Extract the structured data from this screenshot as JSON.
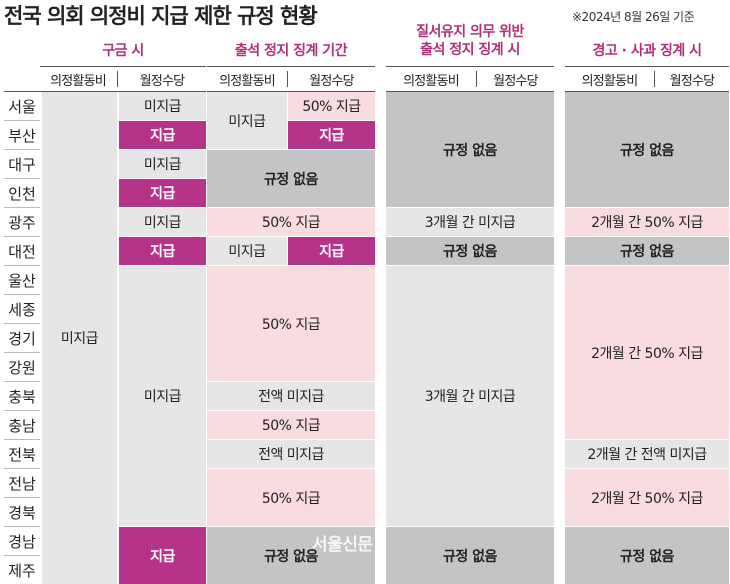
{
  "title": "전국 의회 의정비 지급 제한 규정 현황",
  "date_note": "※2024년 8월 26일 기준",
  "groups": {
    "g1": "구금 시",
    "g2": "출석 정지 징계 기간",
    "g3_line1": "질서유지 의무 위반",
    "g3_line2": "출석 정지 징계 시",
    "g4": "경고 · 사과 징계 시"
  },
  "subheaders": {
    "activity": "의정활동비",
    "monthly": "월정수당"
  },
  "regions": [
    "서울",
    "부산",
    "대구",
    "인천",
    "광주",
    "대전",
    "울산",
    "세종",
    "경기",
    "강원",
    "충북",
    "충남",
    "전북",
    "전남",
    "경북",
    "경남",
    "제주"
  ],
  "values": {
    "unpaid": "미지급",
    "paid": "지급",
    "half": "50% 지급",
    "none": "규정 없음",
    "full_unpaid": "전액 미지급",
    "three_month_unpaid": "3개월 간 미지급",
    "two_month_half": "2개월 간 50% 지급",
    "two_month_full_unpaid": "2개월 간 전액 미지급"
  },
  "watermark": "서울신문",
  "colors": {
    "accent": "#b6338a",
    "pink": "#f9dce0",
    "light_gray": "#e6e6e6",
    "dark_gray": "#c2c4c5"
  }
}
